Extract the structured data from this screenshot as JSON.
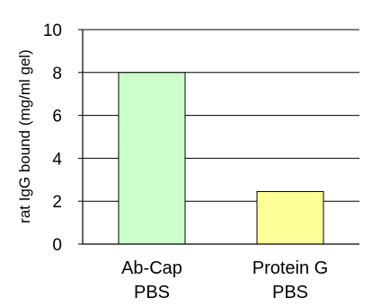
{
  "chart_data": {
    "type": "bar",
    "title": "",
    "xlabel": "",
    "ylabel": "rat IgG bound (mg/ml gel)",
    "categories": [
      [
        "Ab-Cap",
        "PBS"
      ],
      [
        "Protein G",
        "PBS"
      ]
    ],
    "values": [
      8.0,
      2.45
    ],
    "ylim": [
      0,
      10
    ],
    "yticks": [
      "0",
      "2",
      "4",
      "6",
      "8",
      "10"
    ],
    "grid": true,
    "legend": "none",
    "colors": [
      "#ccffcc",
      "#ffff99"
    ]
  }
}
